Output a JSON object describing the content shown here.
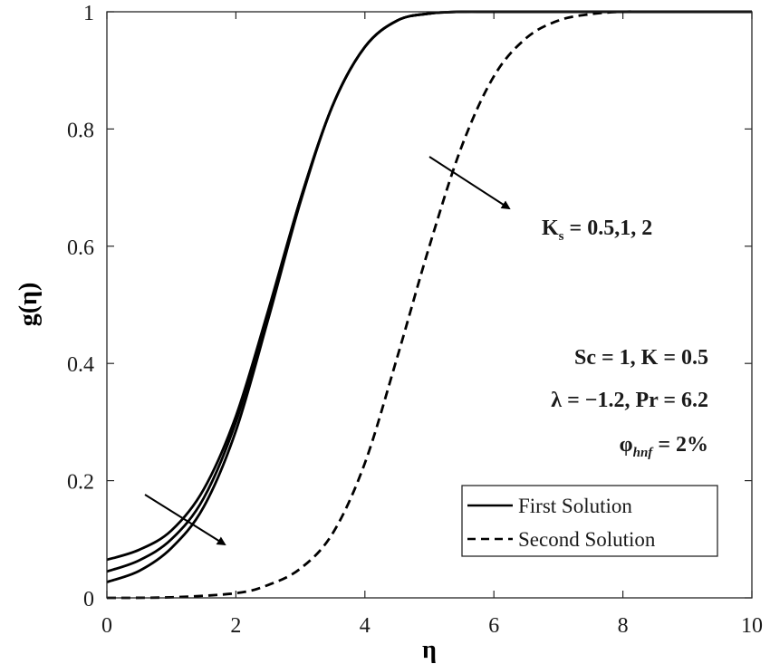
{
  "chart_data": {
    "type": "line",
    "xlabel": "η",
    "ylabel": "g(η)",
    "xlim": [
      0,
      10
    ],
    "ylim": [
      0,
      1
    ],
    "xticks": [
      "0",
      "2",
      "4",
      "6",
      "8",
      "10"
    ],
    "yticks": [
      "0",
      "0.2",
      "0.4",
      "0.6",
      "0.8",
      "1"
    ],
    "grid": false,
    "legend_position": "bottom-right",
    "legend": [
      {
        "label": "First Solution",
        "style": "solid"
      },
      {
        "label": "Second Solution",
        "style": "dashed"
      }
    ],
    "series": [
      {
        "group": "First Solution",
        "style": "solid",
        "x": [
          0,
          0.5,
          1,
          1.5,
          2,
          2.5,
          3,
          3.5,
          4,
          4.5,
          5,
          5.5,
          6,
          7,
          8,
          10
        ],
        "y": [
          0.065,
          0.082,
          0.115,
          0.185,
          0.31,
          0.49,
          0.68,
          0.84,
          0.94,
          0.985,
          0.997,
          1.0,
          1.0,
          1.0,
          1.0,
          1.0
        ]
      },
      {
        "group": "First Solution",
        "style": "solid",
        "x": [
          0,
          0.5,
          1,
          1.5,
          2,
          2.5,
          3,
          3.5,
          4,
          4.5,
          5,
          5.5,
          6,
          7,
          8,
          10
        ],
        "y": [
          0.045,
          0.064,
          0.1,
          0.17,
          0.3,
          0.485,
          0.68,
          0.84,
          0.94,
          0.985,
          0.997,
          1.0,
          1.0,
          1.0,
          1.0,
          1.0
        ]
      },
      {
        "group": "First Solution",
        "style": "solid",
        "x": [
          0,
          0.5,
          1,
          1.5,
          2,
          2.5,
          3,
          3.5,
          4,
          4.5,
          5,
          5.5,
          6,
          7,
          8,
          10
        ],
        "y": [
          0.027,
          0.046,
          0.085,
          0.155,
          0.285,
          0.475,
          0.675,
          0.84,
          0.94,
          0.985,
          0.997,
          1.0,
          1.0,
          1.0,
          1.0,
          1.0
        ]
      },
      {
        "group": "Second Solution",
        "style": "dashed",
        "x": [
          0,
          1,
          2,
          2.5,
          3,
          3.5,
          4,
          4.5,
          5,
          5.5,
          6,
          6.5,
          7,
          7.5,
          8,
          8.5,
          10
        ],
        "y": [
          0.0,
          0.001,
          0.008,
          0.022,
          0.05,
          0.11,
          0.23,
          0.41,
          0.6,
          0.77,
          0.89,
          0.955,
          0.985,
          0.996,
          1.0,
          1.0,
          1.0
        ]
      }
    ],
    "annotations": {
      "ks_label": "K",
      "ks_subscript": "s",
      "ks_values": " = 0.5,1, 2",
      "params_line1": "Sc = 1, K = 0.5",
      "params_line2": "λ = −1.2, Pr = 6.2",
      "phi_symbol": "φ",
      "phi_subscript": "hnf",
      "phi_value": " = 2%"
    }
  }
}
